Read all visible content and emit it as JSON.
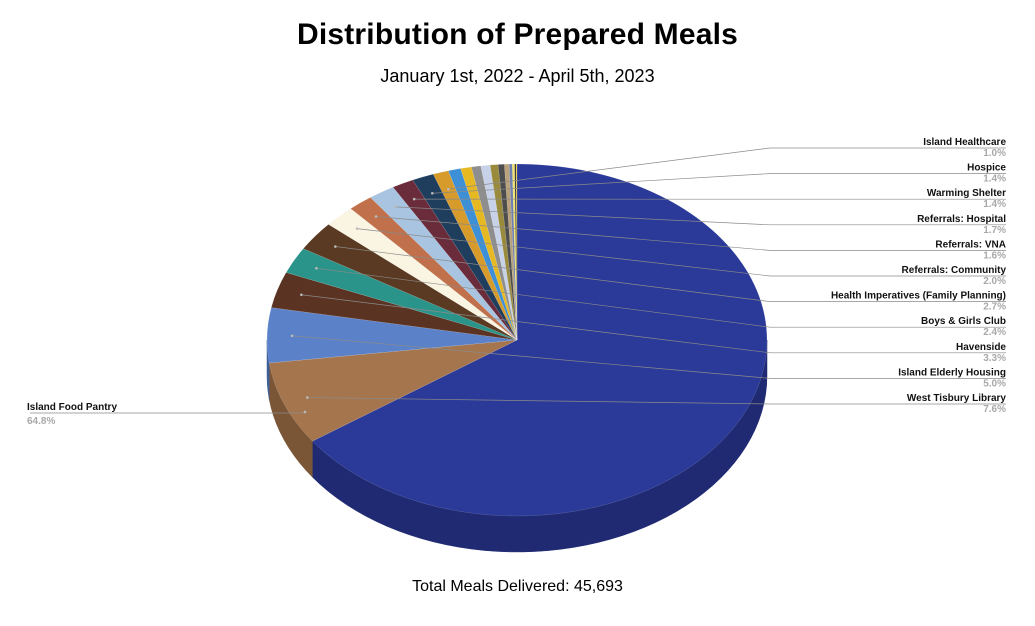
{
  "chart_data": {
    "type": "pie",
    "title": "Distribution of Prepared Meals",
    "subtitle": "January 1st, 2022 - April 5th, 2023",
    "footer": "Total Meals Delivered: 45,693",
    "slices": [
      {
        "label": "Island Food Pantry",
        "percent_label": "64.8%",
        "value": 64.8,
        "color": "#2b3a98",
        "side_color": "#1f2a72",
        "labeled": true
      },
      {
        "label": "West Tisbury Library",
        "percent_label": "7.6%",
        "value": 7.6,
        "color": "#a5764e",
        "side_color": "#7a5536",
        "labeled": true
      },
      {
        "label": "Island Elderly Housing",
        "percent_label": "5.0%",
        "value": 5.0,
        "color": "#5b82c9",
        "side_color": "#3e5f99",
        "labeled": true
      },
      {
        "label": "Havenside",
        "percent_label": "3.3%",
        "value": 3.3,
        "color": "#5b3322",
        "side_color": "#3f2317",
        "labeled": true
      },
      {
        "label": "Boys & Girls Club",
        "percent_label": "2.4%",
        "value": 2.4,
        "color": "#2a948a",
        "side_color": "#1d6b63",
        "labeled": true
      },
      {
        "label": "Health Imperatives (Family Planning)",
        "percent_label": "2.7%",
        "value": 2.7,
        "color": "#5a3a22",
        "side_color": "#3e2816",
        "labeled": true
      },
      {
        "label": "Referrals: Community",
        "percent_label": "2.0%",
        "value": 2.0,
        "color": "#faf4e2",
        "side_color": "#d8d0b8",
        "labeled": true
      },
      {
        "label": "Referrals: VNA",
        "percent_label": "1.6%",
        "value": 1.6,
        "color": "#c0704b",
        "side_color": "#8f5236",
        "labeled": true
      },
      {
        "label": "Referrals: Hospital",
        "percent_label": "1.7%",
        "value": 1.7,
        "color": "#a8c4e0",
        "side_color": "#7f9ab4",
        "labeled": true
      },
      {
        "label": "Warming Shelter",
        "percent_label": "1.4%",
        "value": 1.4,
        "color": "#6a2b3a",
        "side_color": "#4a1e28",
        "labeled": true
      },
      {
        "label": "Hospice",
        "percent_label": "1.4%",
        "value": 1.4,
        "color": "#1f3d5c",
        "side_color": "#152a40",
        "labeled": true
      },
      {
        "label": "Island Healthcare",
        "percent_label": "1.0%",
        "value": 1.0,
        "color": "#d79b2c",
        "side_color": "#a1731f",
        "labeled": true
      },
      {
        "label": "",
        "percent_label": "",
        "value": 0.8,
        "color": "#3d8fd6",
        "side_color": "#2b69a0",
        "labeled": false
      },
      {
        "label": "",
        "percent_label": "",
        "value": 0.7,
        "color": "#e6b822",
        "side_color": "#ad8a18",
        "labeled": false
      },
      {
        "label": "",
        "percent_label": "",
        "value": 0.6,
        "color": "#8e8e8e",
        "side_color": "#6a6a6a",
        "labeled": false
      },
      {
        "label": "",
        "percent_label": "",
        "value": 0.6,
        "color": "#c7d2e8",
        "side_color": "#98a2b8",
        "labeled": false
      },
      {
        "label": "",
        "percent_label": "",
        "value": 0.5,
        "color": "#9a8a3c",
        "side_color": "#72662c",
        "labeled": false
      },
      {
        "label": "",
        "percent_label": "",
        "value": 0.4,
        "color": "#4d4d4d",
        "side_color": "#333333",
        "labeled": false
      },
      {
        "label": "",
        "percent_label": "",
        "value": 0.3,
        "color": "#b9a27a",
        "side_color": "#8c7a5a",
        "labeled": false
      },
      {
        "label": "",
        "percent_label": "",
        "value": 0.2,
        "color": "#6e7fb0",
        "side_color": "#505d82",
        "labeled": false
      },
      {
        "label": "",
        "percent_label": "",
        "value": 0.15,
        "color": "#f1e36a",
        "side_color": "#bfb24f",
        "labeled": false
      },
      {
        "label": "",
        "percent_label": "",
        "value": 0.1,
        "color": "#3a3a3a",
        "side_color": "#222222",
        "labeled": false
      },
      {
        "label": "",
        "percent_label": "",
        "value": 0.05,
        "color": "#f6d21e",
        "side_color": "#c2a416",
        "labeled": false
      }
    ]
  }
}
